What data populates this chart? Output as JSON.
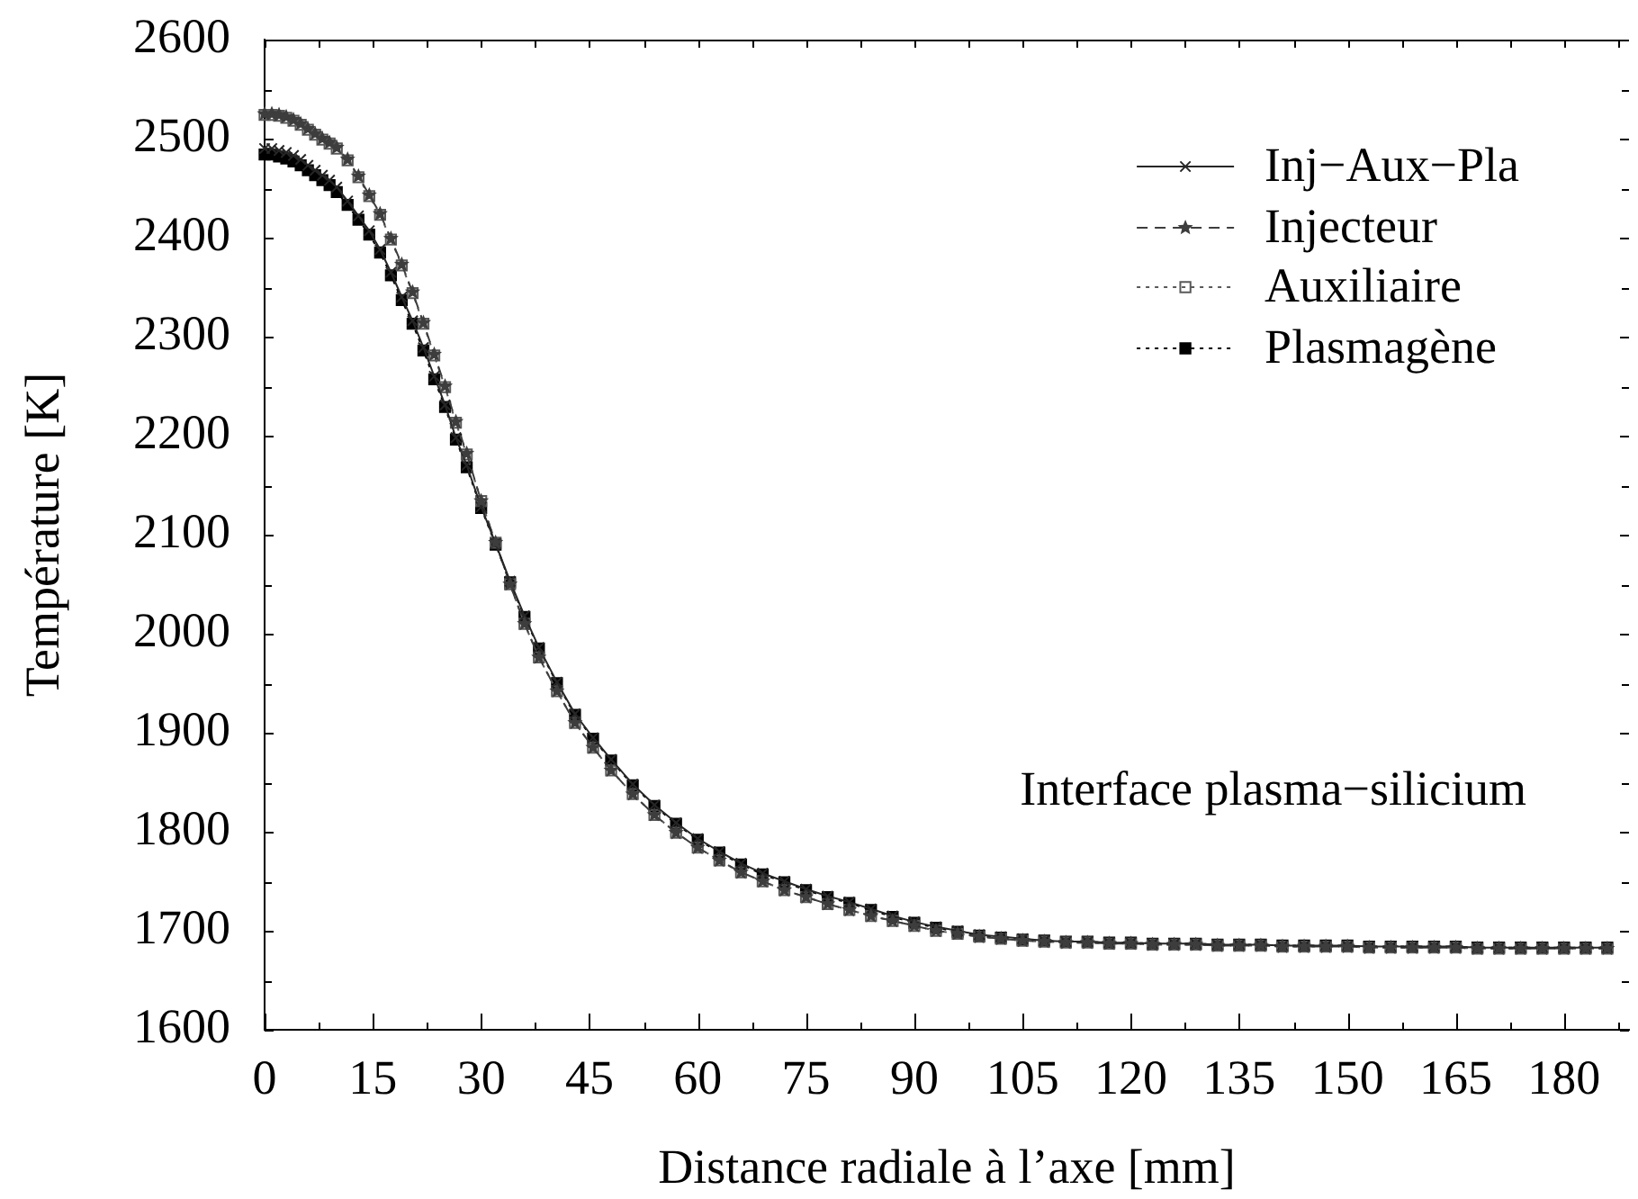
{
  "chart_data": {
    "type": "line",
    "xlabel": "Distance radiale à l’axe [mm]",
    "ylabel": "Température [K]",
    "annotations": [
      "Interface plasma−silicium"
    ],
    "legend": "top right",
    "xlim": [
      0,
      189
    ],
    "xticks": [
      0,
      {
        "value": 7.5,
        "label": null
      },
      15,
      {
        "value": 22.5,
        "label": null
      },
      30,
      {
        "value": 37.5,
        "label": null
      },
      45,
      {
        "value": 52.5,
        "label": null
      },
      60,
      {
        "value": 67.5,
        "label": null
      },
      75,
      {
        "value": 82.5,
        "label": null
      },
      90,
      {
        "value": 97.5,
        "label": null
      },
      105,
      {
        "value": 112.5,
        "label": null
      },
      120,
      {
        "value": 127.5,
        "label": null
      },
      135,
      {
        "value": 142.5,
        "label": null
      },
      150,
      {
        "value": 157.5,
        "label": null
      },
      165,
      {
        "value": 172.5,
        "label": null
      },
      180,
      {
        "value": 187.5,
        "label": null
      }
    ],
    "ylim": [
      1600,
      2600
    ],
    "yticks": [
      1600,
      {
        "value": 1650,
        "label": null
      },
      1700,
      {
        "value": 1750,
        "label": null
      },
      1800,
      {
        "value": 1850,
        "label": null
      },
      1900,
      {
        "value": 1950,
        "label": null
      },
      2000,
      {
        "value": 2050,
        "label": null
      },
      2100,
      {
        "value": 2150,
        "label": null
      },
      2200,
      {
        "value": 2250,
        "label": null
      },
      2300,
      {
        "value": 2350,
        "label": null
      },
      2400,
      {
        "value": 2450,
        "label": null
      },
      2500,
      {
        "value": 2550,
        "label": null
      },
      2600
    ],
    "x": [
      0,
      1,
      2,
      3,
      4,
      5,
      6,
      7,
      8,
      9,
      10,
      11.5,
      13,
      14.5,
      16,
      17.5,
      19,
      20.5,
      22,
      23.5,
      25,
      26.5,
      28,
      30,
      32,
      34,
      36,
      38,
      40.5,
      43,
      45.5,
      48,
      51,
      54,
      57,
      60,
      63,
      66,
      69,
      72,
      75,
      78,
      81,
      84,
      87,
      90,
      93,
      96,
      99,
      102,
      105,
      108,
      111,
      114,
      117,
      120,
      123,
      126,
      129,
      132,
      135,
      138,
      141,
      144,
      147,
      150,
      153,
      156,
      159,
      162,
      165,
      168,
      171,
      174,
      177,
      180,
      183,
      186
    ],
    "series": [
      {
        "name": "Inj−Aux−Pla",
        "color": "#262626",
        "marker": "cross",
        "line_style": "solid",
        "values": [
          2490,
          2490,
          2488,
          2486,
          2483,
          2479,
          2473,
          2468,
          2463,
          2458,
          2451,
          2437,
          2422,
          2407,
          2388,
          2365,
          2340,
          2316,
          2289,
          2260,
          2231,
          2198,
          2170,
          2128,
          2091,
          2053,
          2018,
          1986,
          1951,
          1919,
          1895,
          1873,
          1848,
          1827,
          1809,
          1793,
          1780,
          1768,
          1758,
          1750,
          1742,
          1735,
          1729,
          1722,
          1715,
          1709,
          1704,
          1700,
          1696,
          1694,
          1692,
          1690,
          1689,
          1689,
          1688,
          1688,
          1687,
          1687,
          1687,
          1686,
          1686,
          1686,
          1685,
          1685,
          1685,
          1685,
          1684,
          1684,
          1684,
          1684,
          1684,
          1683,
          1683,
          1683,
          1683,
          1683,
          1683,
          1683
        ]
      },
      {
        "name": "Injecteur",
        "color": "#3d3d3d",
        "marker": "star",
        "line_style": "dashed",
        "values": [
          2525,
          2525,
          2524,
          2522,
          2519,
          2515,
          2510,
          2505,
          2500,
          2496,
          2491,
          2479,
          2462,
          2443,
          2424,
          2399,
          2373,
          2345,
          2314,
          2282,
          2250,
          2214,
          2182,
          2134,
          2092,
          2050,
          2010,
          1976,
          1942,
          1910,
          1885,
          1862,
          1838,
          1817,
          1799,
          1784,
          1771,
          1759,
          1750,
          1741,
          1734,
          1727,
          1721,
          1715,
          1710,
          1705,
          1700,
          1697,
          1694,
          1692,
          1690,
          1689,
          1688,
          1688,
          1687,
          1687,
          1686,
          1686,
          1686,
          1685,
          1685,
          1685,
          1684,
          1684,
          1684,
          1684,
          1683,
          1683,
          1683,
          1683,
          1683,
          1682,
          1682,
          1682,
          1682,
          1682,
          1682,
          1682
        ]
      },
      {
        "name": "Auxiliaire",
        "color": "#595959",
        "marker": "square",
        "line_style": "dotted",
        "values": [
          2524,
          2524,
          2523,
          2521,
          2518,
          2514,
          2509,
          2504,
          2499,
          2495,
          2490,
          2478,
          2461,
          2442,
          2423,
          2398,
          2372,
          2344,
          2313,
          2281,
          2249,
          2213,
          2181,
          2134,
          2092,
          2050,
          2010,
          1976,
          1942,
          1910,
          1885,
          1862,
          1838,
          1817,
          1799,
          1784,
          1771,
          1759,
          1750,
          1741,
          1734,
          1727,
          1721,
          1715,
          1710,
          1705,
          1700,
          1697,
          1694,
          1692,
          1690,
          1689,
          1688,
          1688,
          1687,
          1687,
          1686,
          1686,
          1686,
          1685,
          1685,
          1685,
          1684,
          1684,
          1684,
          1684,
          1683,
          1683,
          1683,
          1683,
          1683,
          1682,
          1682,
          1682,
          1682,
          1682,
          1682,
          1682
        ]
      },
      {
        "name": "Plasmagène",
        "color": "#000000",
        "marker": "square",
        "line_style": "dotted",
        "values": [
          2484,
          2484,
          2482,
          2480,
          2477,
          2473,
          2468,
          2463,
          2458,
          2453,
          2446,
          2433,
          2418,
          2403,
          2385,
          2362,
          2337,
          2313,
          2286,
          2257,
          2229,
          2196,
          2168,
          2127,
          2090,
          2052,
          2017,
          1985,
          1950,
          1918,
          1894,
          1872,
          1847,
          1826,
          1808,
          1792,
          1779,
          1767,
          1757,
          1749,
          1741,
          1734,
          1728,
          1721,
          1714,
          1708,
          1703,
          1699,
          1695,
          1693,
          1691,
          1690,
          1689,
          1689,
          1688,
          1688,
          1687,
          1687,
          1687,
          1686,
          1686,
          1686,
          1685,
          1685,
          1685,
          1685,
          1684,
          1684,
          1684,
          1684,
          1684,
          1683,
          1683,
          1683,
          1683,
          1683,
          1683,
          1683
        ]
      }
    ]
  }
}
